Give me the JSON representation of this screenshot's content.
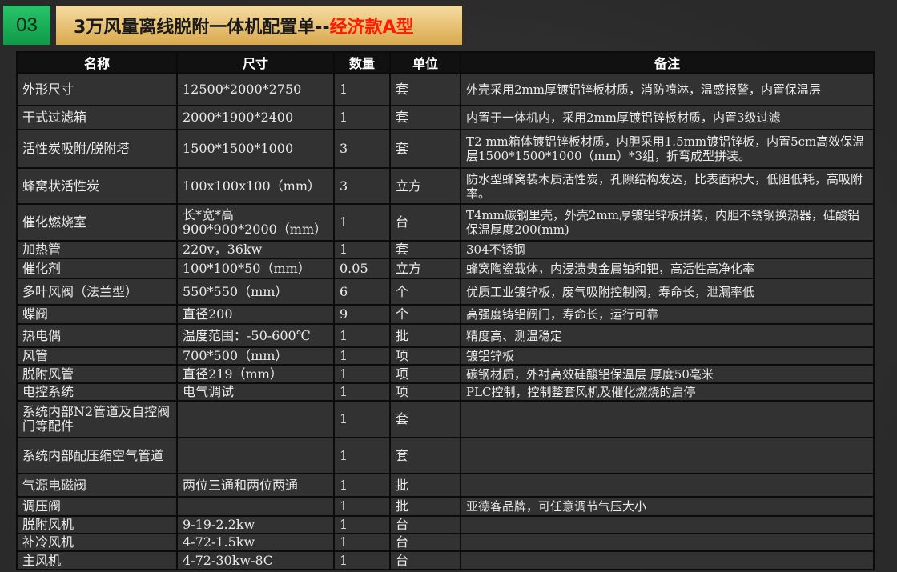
{
  "header": {
    "number": "03",
    "title_main": "3万风量离线脱附一体机配置单--",
    "title_highlight": "经济款A型",
    "highlight_color": "#ff1a00"
  },
  "table": {
    "columns": [
      "名称",
      "尺寸",
      "数量",
      "单位",
      "备注"
    ],
    "rows": [
      [
        "外形尺寸",
        "12500*2000*2750",
        "1",
        "套",
        "外壳采用2mm厚镀铝锌板材质，消防喷淋，温感报警，内置保温层"
      ],
      [
        "干式过滤箱",
        "2000*1900*2400",
        "1",
        "套",
        "内置于一体机内，采用2mm厚镀铝锌板材质，内置3级过滤"
      ],
      [
        "活性炭吸附/脱附塔",
        "1500*1500*1000",
        "3",
        "套",
        "T2 mm箱体镀铝锌板材质，内胆采用1.5mm镀铝锌板，内置5cm高效保温层1500*1500*1000（mm）*3组，折弯成型拼装。"
      ],
      [
        "蜂窝状活性炭",
        "100x100x100（mm）",
        "3",
        "立方",
        "防水型蜂窝装木质活性炭，孔隙结构发达，比表面积大，低阻低耗，高吸附率。"
      ],
      [
        "催化燃烧室",
        "长*宽*高 900*900*2000（mm）",
        "1",
        "台",
        "T4mm碳钢里壳，外壳2mm厚镀铝锌板拼装，内胆不锈钢换热器，硅酸铝保温厚度200(mm)"
      ],
      [
        "加热管",
        "220v，36kw",
        "1",
        "套",
        "304不锈钢"
      ],
      [
        "催化剂",
        "100*100*50（mm）",
        "0.05",
        "立方",
        "蜂窝陶瓷载体，内浸渍贵金属铂和钯，高活性高净化率"
      ],
      [
        "多叶风阀（法兰型）",
        "550*550（mm）",
        "6",
        "个",
        "优质工业镀锌板，废气吸附控制阀，寿命长，泄漏率低"
      ],
      [
        "蝶阀",
        "直径200",
        "9",
        "个",
        "高强度铸铝阀门，寿命长，运行可靠"
      ],
      [
        "热电偶",
        "温度范围：-50-600℃",
        "1",
        "批",
        "精度高、测温稳定"
      ],
      [
        "风管",
        "700*500（mm）",
        "1",
        "项",
        "镀铝锌板"
      ],
      [
        "脱附风管",
        "直径219（mm）",
        "1",
        "项",
        "碳钢材质，外衬高效硅酸铝保温层 厚度50毫米"
      ],
      [
        "电控系统",
        "电气调试",
        "1",
        "项",
        "PLC控制，控制整套风机及催化燃烧的启停"
      ],
      [
        "系统内部N2管道及自控阀门等配件",
        "",
        "1",
        "套",
        ""
      ],
      [
        "系统内部配压缩空气管道",
        "",
        "1",
        "套",
        ""
      ],
      [
        "气源电磁阀",
        "两位三通和两位两通",
        "1",
        "批",
        ""
      ],
      [
        "调压阀",
        "",
        "1",
        "批",
        "亚德客品牌，可任意调节气压大小"
      ],
      [
        "脱附风机",
        "9-19-2.2kw",
        "1",
        "台",
        ""
      ],
      [
        "补冷风机",
        "4-72-1.5kw",
        "1",
        "台",
        ""
      ],
      [
        "主风机",
        "4-72-30kw-8C",
        "1",
        "台",
        ""
      ]
    ]
  }
}
